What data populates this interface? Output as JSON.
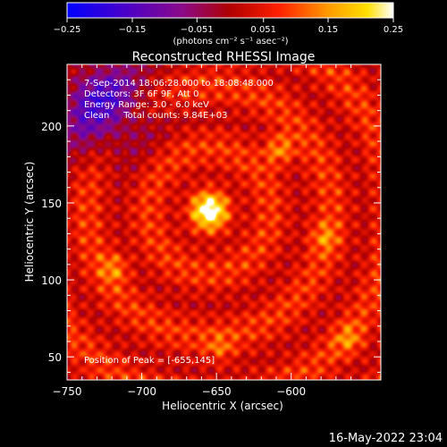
{
  "colorbar": {
    "ticks": [
      "-0.25",
      "-0.15",
      "-0.051",
      "0.051",
      "0.15",
      "0.25"
    ],
    "min": -0.25,
    "max": 0.25,
    "units_label": "(photons cm⁻² s⁻¹ asec⁻²)"
  },
  "title": "Reconstructed RHESSI Image",
  "info_lines": {
    "time_range": "7-Sep-2014 18:06:28.000 to 18:08:48.000",
    "detectors": "Detectors: 3F 6F 9F, Att 0",
    "energy": "Energy Range: 3.0 - 6.0 keV",
    "method": "Clean     Total counts: 9.84E+03"
  },
  "peak_label": "Position of Peak = [-655,145]",
  "footer_timestamp": "16-May-2022 23:04",
  "chart_data": {
    "type": "heatmap",
    "title": "Reconstructed RHESSI Image",
    "xlabel": "Heliocentric X (arcsec)",
    "ylabel": "Heliocentric Y (arcsec)",
    "xlim": [
      -750,
      -540
    ],
    "ylim": [
      35,
      240
    ],
    "x_ticks": [
      -750,
      -700,
      -650,
      -600
    ],
    "x_tick_labels": [
      "−750",
      "−700",
      "−650",
      "−600"
    ],
    "y_ticks": [
      50,
      100,
      150,
      200
    ],
    "y_tick_labels": [
      "50",
      "100",
      "150",
      "200"
    ],
    "color_scale": {
      "min": -0.25,
      "max": 0.25,
      "colormap": "blue-purple-red-orange-yellow-white"
    },
    "peak": {
      "x": -655,
      "y": 145,
      "value": 0.25
    },
    "secondary_sources": [
      {
        "x": -608,
        "y": 185,
        "value": 0.17
      },
      {
        "x": -718,
        "y": 108,
        "value": 0.13
      },
      {
        "x": -578,
        "y": 128,
        "value": 0.12
      },
      {
        "x": -648,
        "y": 55,
        "value": 0.11
      },
      {
        "x": -562,
        "y": 62,
        "value": 0.12
      }
    ],
    "negative_region": {
      "x": -728,
      "y": 215,
      "value": -0.14
    }
  }
}
